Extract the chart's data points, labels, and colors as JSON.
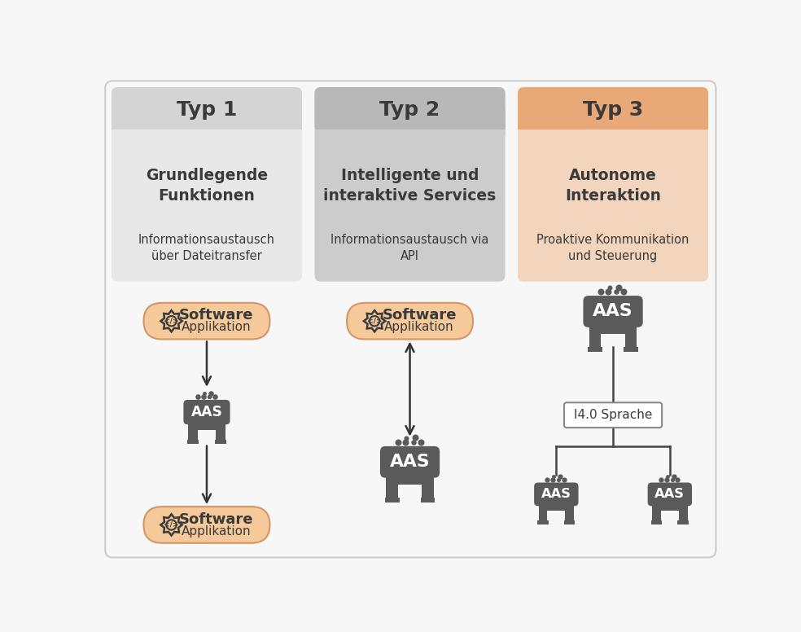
{
  "bg_color": "#f7f7f7",
  "col_bg": [
    "#e8e8e8",
    "#cccccc",
    "#f2d5bc"
  ],
  "header_bg": [
    "#d4d4d4",
    "#b8b8b8",
    "#e8a878"
  ],
  "types": [
    "Typ 1",
    "Typ 2",
    "Typ 3"
  ],
  "bold_labels": [
    "Grundlegende\nFunktionen",
    "Intelligente und\ninteraktive Services",
    "Autonome\nInteraktion"
  ],
  "sub_labels": [
    "Informationsaustausch\nüber Dateitransfer",
    "Informationsaustausch via\nAPI",
    "Proaktive Kommunikation\nund Steuerung"
  ],
  "aas_color": "#5a5a5a",
  "aas_text_color": "#ffffff",
  "sw_box_color": "#f5c99a",
  "sw_box_edge": "#d4956a",
  "arrow_color": "#333333",
  "text_dark": "#3a3a3a",
  "i40_box_color": "#ffffff",
  "i40_box_edge": "#888888",
  "line_color": "#444444"
}
